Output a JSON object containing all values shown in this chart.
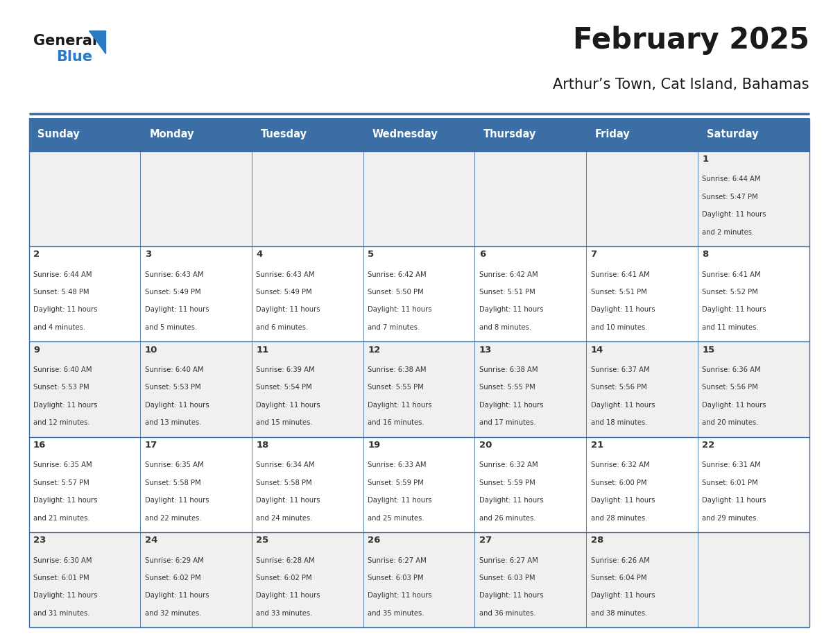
{
  "title": "February 2025",
  "subtitle": "Arthur’s Town, Cat Island, Bahamas",
  "days_of_week": [
    "Sunday",
    "Monday",
    "Tuesday",
    "Wednesday",
    "Thursday",
    "Friday",
    "Saturday"
  ],
  "header_bg": "#3a6ea5",
  "header_text": "#ffffff",
  "cell_bg_odd": "#f0f0f0",
  "cell_bg_even": "#ffffff",
  "grid_line_color": "#3a6ea5",
  "text_color": "#333333",
  "day_num_color": "#333333",
  "logo_general_color": "#1a1a1a",
  "logo_blue_color": "#2b79c2",
  "logo_triangle_color": "#2b79c2",
  "calendar": [
    [
      null,
      null,
      null,
      null,
      null,
      null,
      {
        "day": 1,
        "sunrise": "6:44 AM",
        "sunset": "5:47 PM",
        "daylight": "11 hours",
        "daylight2": "and 2 minutes."
      }
    ],
    [
      {
        "day": 2,
        "sunrise": "6:44 AM",
        "sunset": "5:48 PM",
        "daylight": "11 hours",
        "daylight2": "and 4 minutes."
      },
      {
        "day": 3,
        "sunrise": "6:43 AM",
        "sunset": "5:49 PM",
        "daylight": "11 hours",
        "daylight2": "and 5 minutes."
      },
      {
        "day": 4,
        "sunrise": "6:43 AM",
        "sunset": "5:49 PM",
        "daylight": "11 hours",
        "daylight2": "and 6 minutes."
      },
      {
        "day": 5,
        "sunrise": "6:42 AM",
        "sunset": "5:50 PM",
        "daylight": "11 hours",
        "daylight2": "and 7 minutes."
      },
      {
        "day": 6,
        "sunrise": "6:42 AM",
        "sunset": "5:51 PM",
        "daylight": "11 hours",
        "daylight2": "and 8 minutes."
      },
      {
        "day": 7,
        "sunrise": "6:41 AM",
        "sunset": "5:51 PM",
        "daylight": "11 hours",
        "daylight2": "and 10 minutes."
      },
      {
        "day": 8,
        "sunrise": "6:41 AM",
        "sunset": "5:52 PM",
        "daylight": "11 hours",
        "daylight2": "and 11 minutes."
      }
    ],
    [
      {
        "day": 9,
        "sunrise": "6:40 AM",
        "sunset": "5:53 PM",
        "daylight": "11 hours",
        "daylight2": "and 12 minutes."
      },
      {
        "day": 10,
        "sunrise": "6:40 AM",
        "sunset": "5:53 PM",
        "daylight": "11 hours",
        "daylight2": "and 13 minutes."
      },
      {
        "day": 11,
        "sunrise": "6:39 AM",
        "sunset": "5:54 PM",
        "daylight": "11 hours",
        "daylight2": "and 15 minutes."
      },
      {
        "day": 12,
        "sunrise": "6:38 AM",
        "sunset": "5:55 PM",
        "daylight": "11 hours",
        "daylight2": "and 16 minutes."
      },
      {
        "day": 13,
        "sunrise": "6:38 AM",
        "sunset": "5:55 PM",
        "daylight": "11 hours",
        "daylight2": "and 17 minutes."
      },
      {
        "day": 14,
        "sunrise": "6:37 AM",
        "sunset": "5:56 PM",
        "daylight": "11 hours",
        "daylight2": "and 18 minutes."
      },
      {
        "day": 15,
        "sunrise": "6:36 AM",
        "sunset": "5:56 PM",
        "daylight": "11 hours",
        "daylight2": "and 20 minutes."
      }
    ],
    [
      {
        "day": 16,
        "sunrise": "6:35 AM",
        "sunset": "5:57 PM",
        "daylight": "11 hours",
        "daylight2": "and 21 minutes."
      },
      {
        "day": 17,
        "sunrise": "6:35 AM",
        "sunset": "5:58 PM",
        "daylight": "11 hours",
        "daylight2": "and 22 minutes."
      },
      {
        "day": 18,
        "sunrise": "6:34 AM",
        "sunset": "5:58 PM",
        "daylight": "11 hours",
        "daylight2": "and 24 minutes."
      },
      {
        "day": 19,
        "sunrise": "6:33 AM",
        "sunset": "5:59 PM",
        "daylight": "11 hours",
        "daylight2": "and 25 minutes."
      },
      {
        "day": 20,
        "sunrise": "6:32 AM",
        "sunset": "5:59 PM",
        "daylight": "11 hours",
        "daylight2": "and 26 minutes."
      },
      {
        "day": 21,
        "sunrise": "6:32 AM",
        "sunset": "6:00 PM",
        "daylight": "11 hours",
        "daylight2": "and 28 minutes."
      },
      {
        "day": 22,
        "sunrise": "6:31 AM",
        "sunset": "6:01 PM",
        "daylight": "11 hours",
        "daylight2": "and 29 minutes."
      }
    ],
    [
      {
        "day": 23,
        "sunrise": "6:30 AM",
        "sunset": "6:01 PM",
        "daylight": "11 hours",
        "daylight2": "and 31 minutes."
      },
      {
        "day": 24,
        "sunrise": "6:29 AM",
        "sunset": "6:02 PM",
        "daylight": "11 hours",
        "daylight2": "and 32 minutes."
      },
      {
        "day": 25,
        "sunrise": "6:28 AM",
        "sunset": "6:02 PM",
        "daylight": "11 hours",
        "daylight2": "and 33 minutes."
      },
      {
        "day": 26,
        "sunrise": "6:27 AM",
        "sunset": "6:03 PM",
        "daylight": "11 hours",
        "daylight2": "and 35 minutes."
      },
      {
        "day": 27,
        "sunrise": "6:27 AM",
        "sunset": "6:03 PM",
        "daylight": "11 hours",
        "daylight2": "and 36 minutes."
      },
      {
        "day": 28,
        "sunrise": "6:26 AM",
        "sunset": "6:04 PM",
        "daylight": "11 hours",
        "daylight2": "and 38 minutes."
      },
      null
    ]
  ],
  "fig_width": 11.88,
  "fig_height": 9.18,
  "dpi": 100
}
